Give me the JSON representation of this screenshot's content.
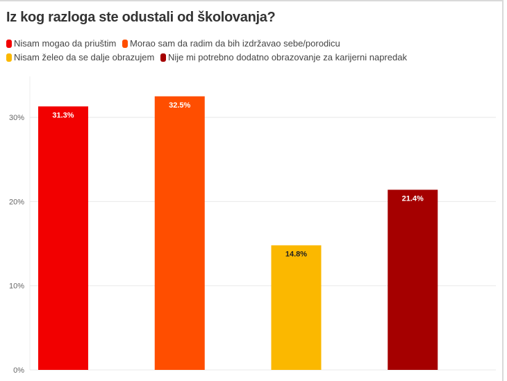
{
  "chart_data": {
    "type": "bar",
    "title": "Iz kog razloga ste odustali od školovanja?",
    "categories": [
      "Nisam mogao da priuštim",
      "Morao sam da radim da bih izdržavao sebe/porodicu",
      "Nisam želeo da se dalje obrazujem",
      "Nije mi potrebno dodatno obrazovanje za karijerni napredak"
    ],
    "values": [
      31.3,
      32.5,
      14.8,
      21.4
    ],
    "labels": [
      "31.3%",
      "32.5%",
      "14.8%",
      "21.4%"
    ],
    "colors": [
      "#f20000",
      "#ff4e00",
      "#fbb800",
      "#a50000"
    ],
    "label_colors": [
      "#ffffff",
      "#ffffff",
      "#222222",
      "#ffffff"
    ],
    "yticks": [
      0,
      10,
      20,
      30
    ],
    "ytick_labels": [
      "0%",
      "10%",
      "20%",
      "30%"
    ],
    "ylim": [
      0,
      35.3
    ],
    "xlabel": "",
    "ylabel": "",
    "grid": true,
    "legend": "top-left"
  }
}
